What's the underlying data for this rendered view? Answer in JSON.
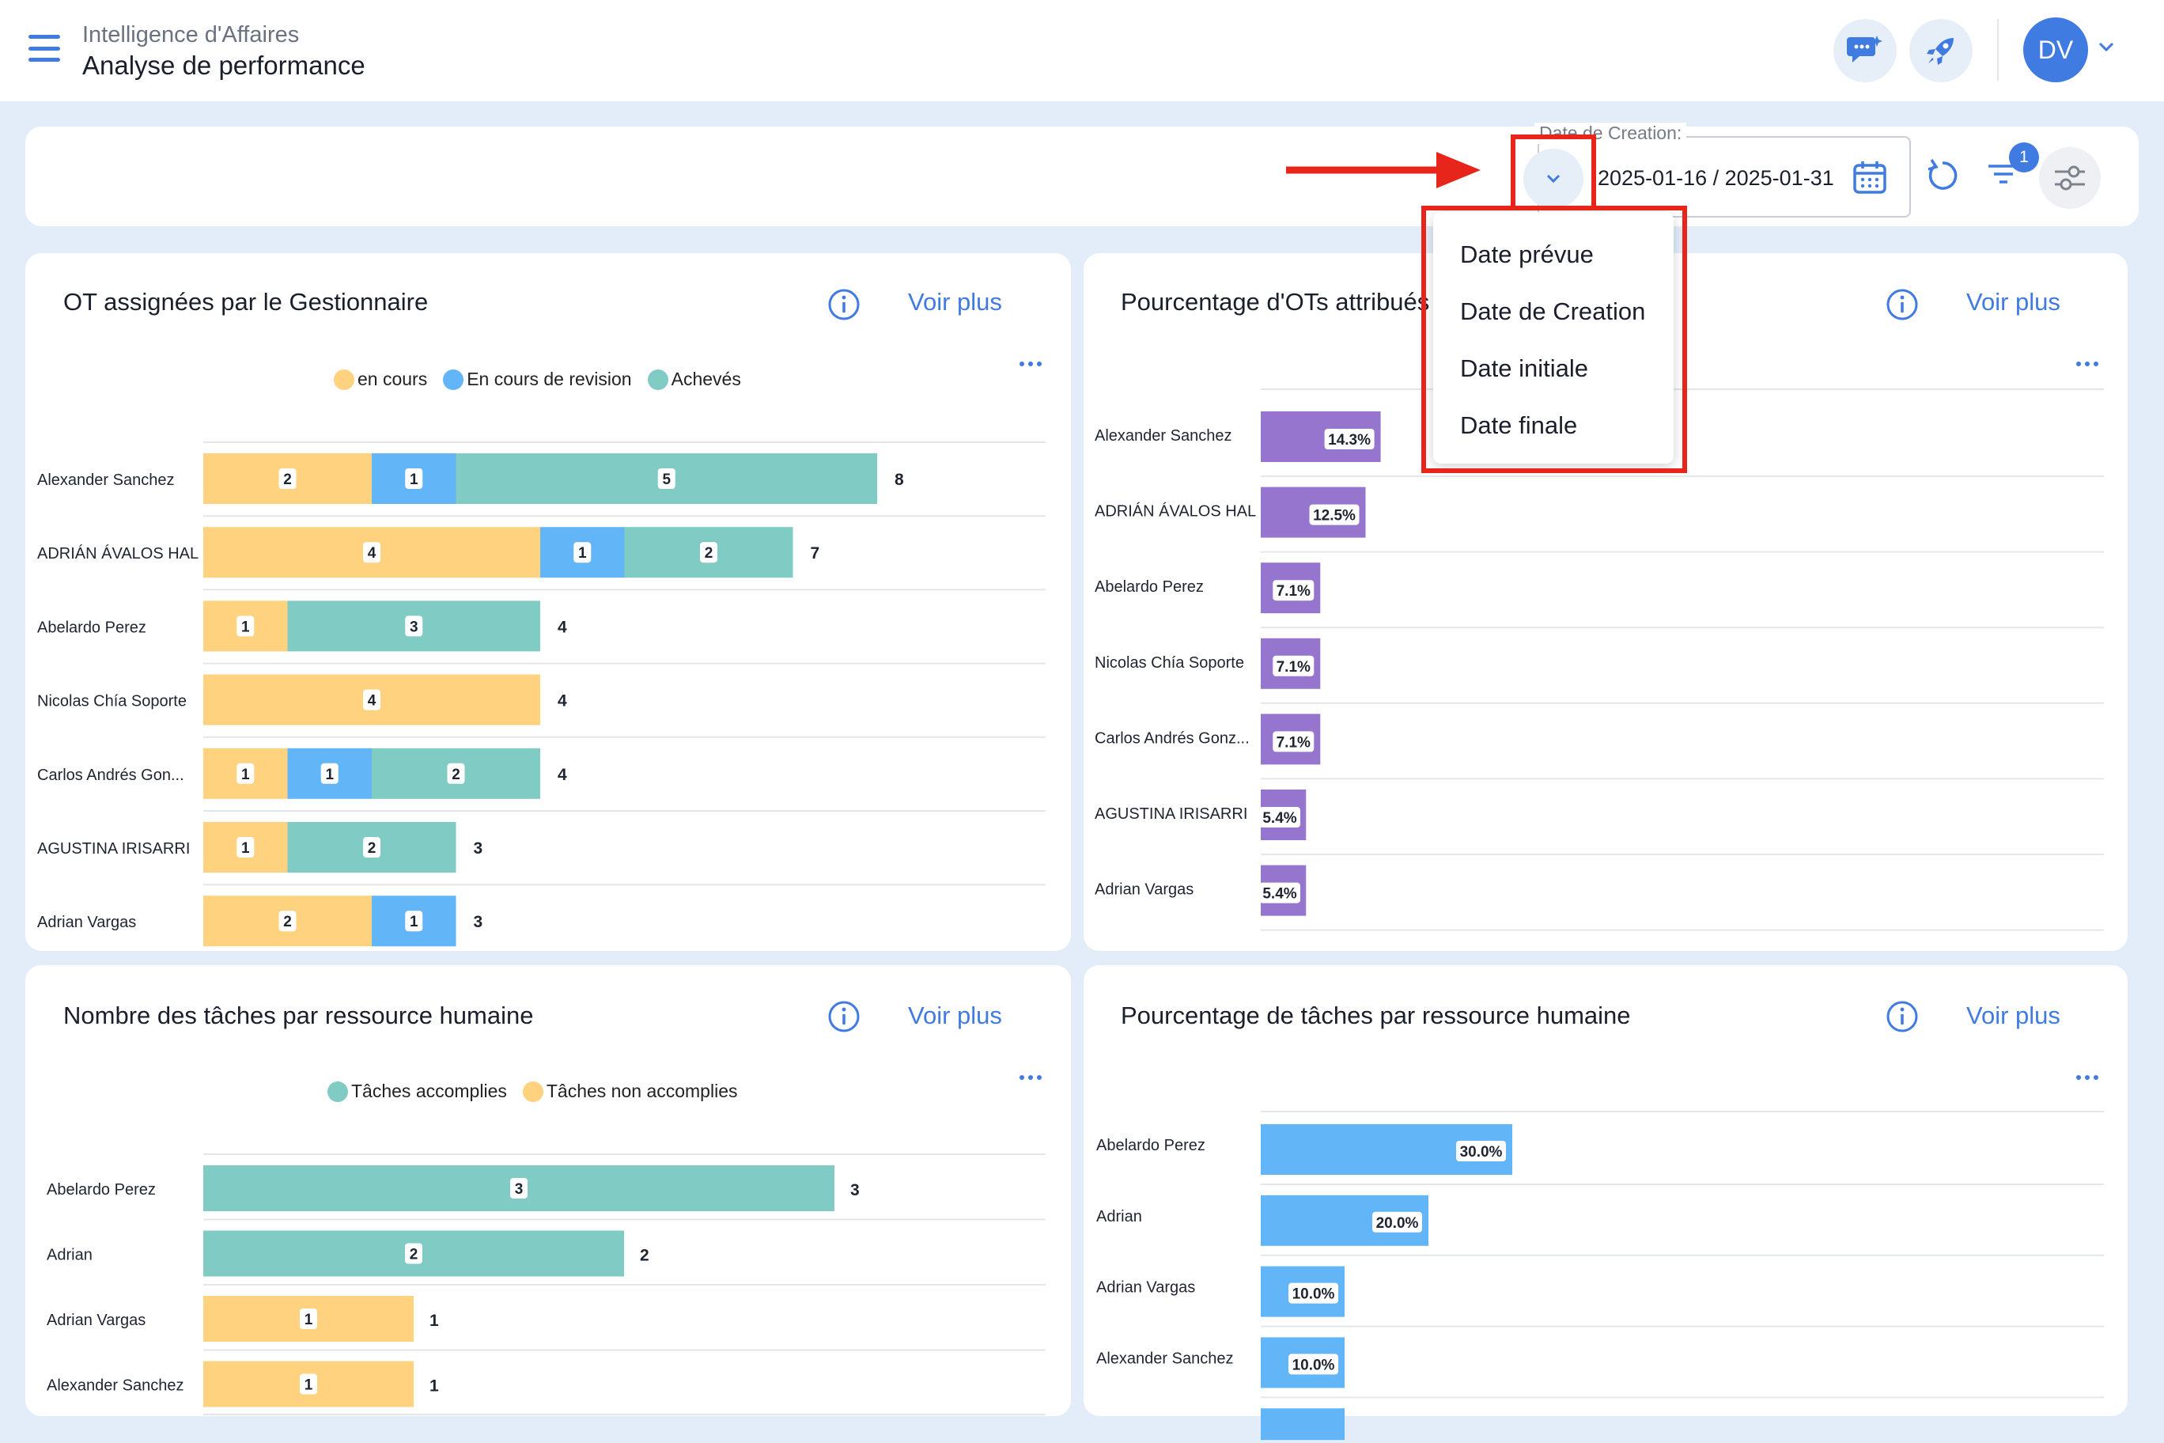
{
  "header": {
    "breadcrumb": "Intelligence d'Affaires",
    "title": "Analyse de performance",
    "avatar_initials": "DV"
  },
  "filters": {
    "date_label": "Date de Creation:",
    "date_range": "2025-01-16 / 2025-01-31",
    "active_filter_count": "1",
    "date_options": [
      "Date prévue",
      "Date de Creation",
      "Date initiale",
      "Date finale"
    ]
  },
  "colors": {
    "accent": "#3f7be0",
    "en_cours": "#ffd280",
    "revision": "#62b5f6",
    "acheves": "#80cbc4",
    "percent_bar": "#9575cd",
    "annotation": "#e8251a"
  },
  "cards": {
    "c1": {
      "title": "OT assignées par le Gestionnaire",
      "link": "Voir plus",
      "legend": [
        "en cours",
        "En cours de revision",
        "Achevés"
      ]
    },
    "c2": {
      "title": "Pourcentage d'OTs attribués",
      "link": "Voir plus"
    },
    "c3": {
      "title": "Nombre des tâches par ressource humaine",
      "link": "Voir plus",
      "legend": [
        "Tâches accomplies",
        "Tâches non accomplies"
      ]
    },
    "c4": {
      "title": "Pourcentage de tâches par ressource humaine",
      "link": "Voir plus"
    }
  },
  "chart_data": [
    {
      "type": "bar",
      "orientation": "horizontal-stacked",
      "categories": [
        "Alexander Sanchez",
        "ADRIÁN ÁVALOS HAL",
        "Abelardo Perez",
        "Nicolas Chía Soporte",
        "Carlos Andrés Gon...",
        "AGUSTINA IRISARRI",
        "Adrian Vargas"
      ],
      "series": [
        {
          "name": "en cours",
          "values": [
            2,
            4,
            1,
            4,
            1,
            1,
            2
          ]
        },
        {
          "name": "En cours de revision",
          "values": [
            1,
            1,
            0,
            0,
            1,
            0,
            1
          ]
        },
        {
          "name": "Achevés",
          "values": [
            5,
            2,
            3,
            0,
            2,
            2,
            0
          ]
        }
      ],
      "totals": [
        8,
        7,
        4,
        4,
        4,
        3,
        3
      ]
    },
    {
      "type": "bar",
      "orientation": "horizontal",
      "categories": [
        "Alexander Sanchez",
        "ADRIÁN ÁVALOS HAL",
        "Abelardo Perez",
        "Nicolas Chía Soporte",
        "Carlos Andrés Gonz...",
        "AGUSTINA IRISARRI",
        "Adrian Vargas"
      ],
      "values": [
        14.3,
        12.5,
        7.1,
        7.1,
        7.1,
        5.4,
        5.4
      ],
      "labels": [
        "14.3%",
        "12.5%",
        "7.1%",
        "7.1%",
        "7.1%",
        "5.4%",
        "5.4%"
      ]
    },
    {
      "type": "bar",
      "orientation": "horizontal-stacked",
      "categories": [
        "Abelardo Perez",
        "Adrian",
        "Adrian Vargas",
        "Alexander Sanchez"
      ],
      "series": [
        {
          "name": "Tâches accomplies",
          "values": [
            3,
            2,
            0,
            0
          ]
        },
        {
          "name": "Tâches non accomplies",
          "values": [
            0,
            0,
            1,
            1
          ]
        }
      ],
      "totals": [
        3,
        2,
        1,
        1
      ]
    },
    {
      "type": "bar",
      "orientation": "horizontal",
      "categories": [
        "Abelardo Perez",
        "Adrian",
        "Adrian Vargas",
        "Alexander Sanchez"
      ],
      "values": [
        30.0,
        20.0,
        10.0,
        10.0
      ],
      "labels": [
        "30.0%",
        "20.0%",
        "10.0%",
        "10.0%"
      ]
    }
  ]
}
